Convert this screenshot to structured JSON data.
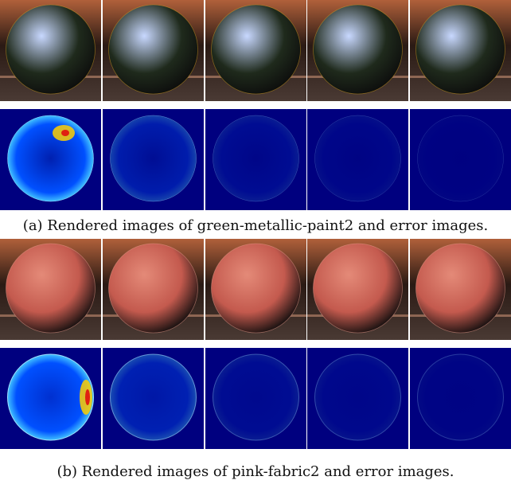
{
  "figure": {
    "caption_a": "(a) Rendered images of green-metallic-paint2 and error images.",
    "caption_b": "(b) Rendered images of pink-fabric2 and error images."
  },
  "materials": {
    "a": {
      "name": "green-metallic-paint2",
      "sphere_color": "#1f2a1c",
      "highlight_color": "#c8d8ff",
      "rim_color": "#d4a020"
    },
    "b": {
      "name": "pink-fabric2",
      "sphere_color": "#c45a4e",
      "highlight_color": "#e48a78",
      "rim_color": "#f0a090"
    }
  },
  "colors": {
    "error_background": "#00007f",
    "env_dark": "#2a1a14",
    "env_warm": "#b0603a"
  },
  "error_levels": {
    "a": [
      1.0,
      0.35,
      0.15,
      0.08,
      0.03
    ],
    "b": [
      1.0,
      0.4,
      0.15,
      0.1,
      0.05
    ]
  }
}
